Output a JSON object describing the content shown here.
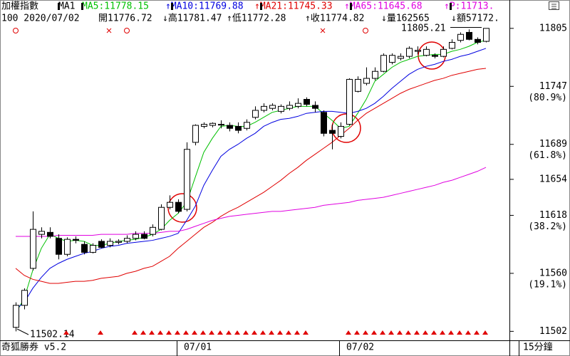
{
  "chart_data": {
    "type": "candlestick",
    "header": [
      {
        "text": "加權指數",
        "color": "#000000"
      },
      {
        "text": "MA1",
        "color": "#000000"
      },
      {
        "text": "MA5:11778.15",
        "color": "#00c000"
      },
      {
        "text": "↑MA10:11769.88",
        "color": "#0000e0"
      },
      {
        "text": "↑MA21:11745.33",
        "color": "#e00000"
      },
      {
        "text": "↑MA65:11645.68",
        "color": "#e000e0"
      },
      {
        "text": "↑P:11713.",
        "color": "#e000e0"
      }
    ],
    "info": [
      "100 2020/07/02",
      "開11776.72",
      "↓高11781.47",
      "↑低11772.28",
      "↑收11774.82",
      "↓量162565",
      "↓額57172."
    ],
    "footer_left": "奇狐勝券 v5.2",
    "footer_right": "15分鐘",
    "high_label": "11805.21",
    "low_label": "11502.14",
    "categories": [
      null,
      null,
      null,
      null,
      null,
      null,
      null,
      null,
      null,
      null,
      null,
      null,
      null,
      null,
      null,
      null,
      null,
      null,
      null,
      "07/01",
      null,
      null,
      null,
      null,
      null,
      null,
      null,
      null,
      null,
      null,
      null,
      null,
      null,
      null,
      null,
      null,
      null,
      null,
      "07/02",
      null,
      null,
      null,
      null,
      null,
      null,
      null,
      null,
      null,
      null,
      null,
      null,
      null,
      null,
      null,
      null,
      null
    ],
    "open": [
      11506,
      11528,
      11565,
      11599,
      11601,
      11595,
      11579,
      11594,
      11589,
      11581,
      11592,
      11588,
      11591,
      11592,
      11595,
      11599,
      11599,
      11604,
      11626,
      11631,
      11624,
      11691,
      11707,
      11708,
      11709,
      11708,
      11707,
      11705,
      11716,
      11723,
      11725,
      11722,
      11725,
      11727,
      11734,
      11728,
      11721,
      11703,
      11697,
      11709,
      11742,
      11750,
      11755,
      11762,
      11771,
      11775,
      11777,
      11782,
      11778,
      11778,
      11777,
      11785,
      11793,
      11801,
      11794,
      11792
    ],
    "high": [
      11531,
      11545,
      11622,
      11606,
      11606,
      11599,
      11596,
      11597,
      11592,
      11590,
      11594,
      11595,
      11594,
      11598,
      11602,
      11602,
      11609,
      11629,
      11638,
      11634,
      11691,
      11709,
      11711,
      11711,
      11713,
      11711,
      11711,
      11714,
      11727,
      11730,
      11730,
      11729,
      11732,
      11735,
      11736,
      11732,
      11723,
      11709,
      11711,
      11755,
      11757,
      11766,
      11766,
      11780,
      11780,
      11780,
      11787,
      11787,
      11787,
      11780,
      11787,
      11794,
      11801,
      11804,
      11796,
      11805
    ],
    "low": [
      11502,
      11524,
      11563,
      11595,
      11595,
      11574,
      11577,
      11590,
      11579,
      11580,
      11585,
      11586,
      11589,
      11590,
      11593,
      11594,
      11597,
      11603,
      11624,
      11620,
      11622,
      11688,
      11705,
      11706,
      11705,
      11702,
      11700,
      11703,
      11714,
      11721,
      11723,
      11720,
      11723,
      11725,
      11727,
      11721,
      11697,
      11684,
      11695,
      11708,
      11741,
      11748,
      11753,
      11761,
      11769,
      11773,
      11775,
      11779,
      11777,
      11775,
      11776,
      11784,
      11791,
      11793,
      11789,
      11791
    ],
    "close": [
      11528,
      11543,
      11604,
      11602,
      11597,
      11579,
      11594,
      11593,
      11581,
      11588,
      11586,
      11592,
      11592,
      11595,
      11599,
      11595,
      11606,
      11626,
      11631,
      11622,
      11684,
      11708,
      11709,
      11710,
      11709,
      11705,
      11703,
      11711,
      11723,
      11727,
      11728,
      11727,
      11728,
      11730,
      11729,
      11725,
      11700,
      11700,
      11707,
      11754,
      11754,
      11755,
      11762,
      11778,
      11778,
      11777,
      11785,
      11783,
      11784,
      11777,
      11784,
      11791,
      11799,
      11794,
      11791,
      11805
    ],
    "up_color": "#ffffff",
    "down_color": "#000000",
    "candle_edge": "#000000",
    "series": [
      {
        "name": "MA5",
        "color": "#00c000",
        "values": [
          11520,
          11535,
          11563,
          11585,
          11599,
          11595,
          11592,
          11593,
          11592,
          11588,
          11588,
          11590,
          11592,
          11593,
          11594,
          11596,
          11599,
          11604,
          11613,
          11620,
          11631,
          11656,
          11681,
          11695,
          11707,
          11708,
          11707,
          11707,
          11711,
          11716,
          11721,
          11723,
          11725,
          11727,
          11727,
          11727,
          11720,
          11713,
          11705,
          11707,
          11720,
          11734,
          11752,
          11759,
          11766,
          11771,
          11774,
          11777,
          11778,
          11779,
          11779,
          11782,
          11784,
          11787,
          11791,
          11793
        ]
      },
      {
        "name": "MA10",
        "color": "#0000e0",
        "values": [
          11524,
          11531,
          11545,
          11556,
          11565,
          11570,
          11574,
          11577,
          11580,
          11582,
          11585,
          11587,
          11588,
          11590,
          11591,
          11592,
          11593,
          11595,
          11597,
          11600,
          11613,
          11627,
          11648,
          11663,
          11677,
          11684,
          11689,
          11695,
          11700,
          11707,
          11711,
          11714,
          11715,
          11717,
          11720,
          11721,
          11722,
          11722,
          11721,
          11720,
          11722,
          11725,
          11730,
          11737,
          11745,
          11752,
          11759,
          11764,
          11767,
          11769,
          11772,
          11774,
          11777,
          11779,
          11782,
          11785
        ]
      },
      {
        "name": "MA21",
        "color": "#e00000",
        "values": [
          11565,
          11558,
          11554,
          11552,
          11550,
          11550,
          11551,
          11552,
          11552,
          11553,
          11555,
          11556,
          11557,
          11560,
          11562,
          11565,
          11567,
          11572,
          11577,
          11585,
          11592,
          11599,
          11606,
          11611,
          11617,
          11622,
          11626,
          11631,
          11636,
          11641,
          11647,
          11653,
          11660,
          11666,
          11673,
          11679,
          11685,
          11691,
          11698,
          11705,
          11713,
          11720,
          11725,
          11730,
          11735,
          11740,
          11744,
          11747,
          11750,
          11753,
          11755,
          11758,
          11760,
          11762,
          11764,
          11765
        ]
      },
      {
        "name": "MA65",
        "color": "#e000e0",
        "values": [
          11597,
          11597,
          11597,
          11597,
          11597,
          11598,
          11598,
          11598,
          11598,
          11598,
          11599,
          11599,
          11599,
          11599,
          11600,
          11600,
          11600,
          11601,
          11602,
          11602,
          11604,
          11607,
          11610,
          11613,
          11615,
          11617,
          11618,
          11619,
          11620,
          11621,
          11622,
          11622,
          11623,
          11624,
          11625,
          11626,
          11628,
          11629,
          11630,
          11631,
          11633,
          11634,
          11635,
          11636,
          11638,
          11640,
          11642,
          11644,
          11646,
          11648,
          11651,
          11653,
          11656,
          11659,
          11662,
          11666
        ]
      }
    ],
    "ylim": [
      11493,
      11812
    ],
    "yticks": [
      11805,
      11747,
      11689,
      11654,
      11618,
      11560,
      11502
    ],
    "fib_labels": [
      {
        "value": 11747,
        "label": "(80.9%)"
      },
      {
        "value": 11689,
        "label": "(61.8%)"
      },
      {
        "value": 11618,
        "label": "(38.2%)"
      },
      {
        "value": 11560,
        "label": "(19.1%)"
      }
    ]
  }
}
